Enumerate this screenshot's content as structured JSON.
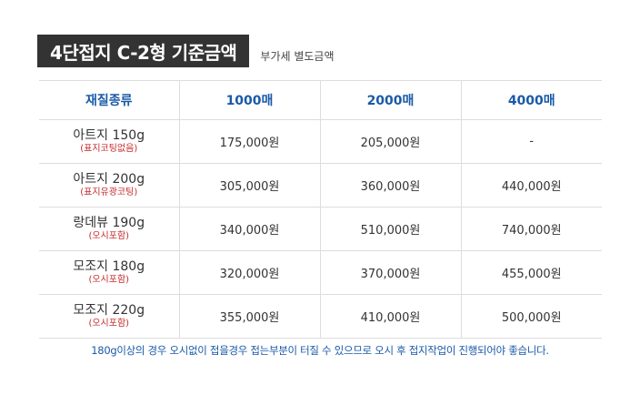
{
  "header": {
    "title": "4단접지 C-2형 기준금액",
    "subtitle": "부가세 별도금액"
  },
  "table": {
    "columns": [
      "재질종류",
      "1000매",
      "2000매",
      "4000매"
    ],
    "rows": [
      {
        "name": "아트지 150g",
        "note": "(표지코팅없음)",
        "values": [
          "175,000원",
          "205,000원",
          "-"
        ]
      },
      {
        "name": "아트지 200g",
        "note": "(표지유광코팅)",
        "values": [
          "305,000원",
          "360,000원",
          "440,000원"
        ]
      },
      {
        "name": "랑데뷰 190g",
        "note": "(오시포함)",
        "values": [
          "340,000원",
          "510,000원",
          "740,000원"
        ]
      },
      {
        "name": "모조지 180g",
        "note": "(오시포함)",
        "values": [
          "320,000원",
          "370,000원",
          "455,000원"
        ]
      },
      {
        "name": "모조지 220g",
        "note": "(오시포함)",
        "values": [
          "355,000원",
          "410,000원",
          "500,000원"
        ]
      }
    ]
  },
  "footnote": "180g이상의 경우 오시없이 접을경우 접는부분이 터질 수 있으므로 오시 후 접지작업이 진행되어야 좋습니다.",
  "colors": {
    "title_bg": "#333333",
    "header_text": "#1a5aa8",
    "note_text": "#c62a2a",
    "grid_line": "#dddddd"
  }
}
